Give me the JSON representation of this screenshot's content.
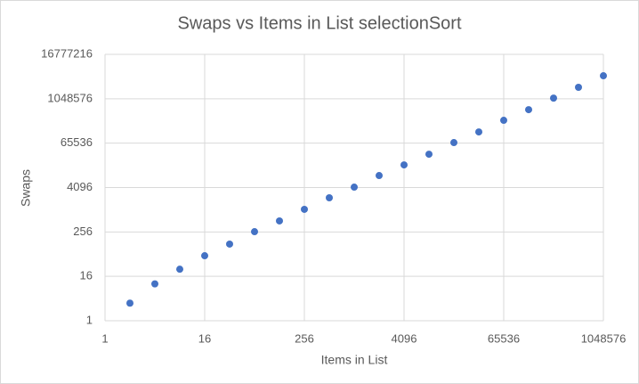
{
  "chart_data": {
    "type": "scatter",
    "title": "Swaps vs Items in List selectionSort",
    "x_label": "Items in List",
    "y_label": "Swaps",
    "x": [
      2,
      4,
      8,
      16,
      32,
      64,
      128,
      256,
      512,
      1024,
      2048,
      4096,
      8192,
      16384,
      32768,
      65536,
      131072,
      262144,
      524288,
      1048576
    ],
    "series": [
      {
        "color": "#4472c4",
        "values": [
          3,
          10,
          25,
          58,
          120,
          260,
          510,
          1050,
          2160,
          4200,
          8660,
          16850,
          32800,
          67900,
          132000,
          273000,
          531000,
          1090000,
          2140000,
          4400000
        ]
      }
    ],
    "xlim": [
      1,
      1048576
    ],
    "xticks": [
      1,
      16,
      256,
      4096,
      65536,
      1048576
    ],
    "ylim": [
      1,
      16777216
    ],
    "yticks": [
      1,
      16,
      256,
      4096,
      65536,
      1048576,
      16777216
    ],
    "xscale": "log",
    "yscale": "log",
    "grid": true
  }
}
